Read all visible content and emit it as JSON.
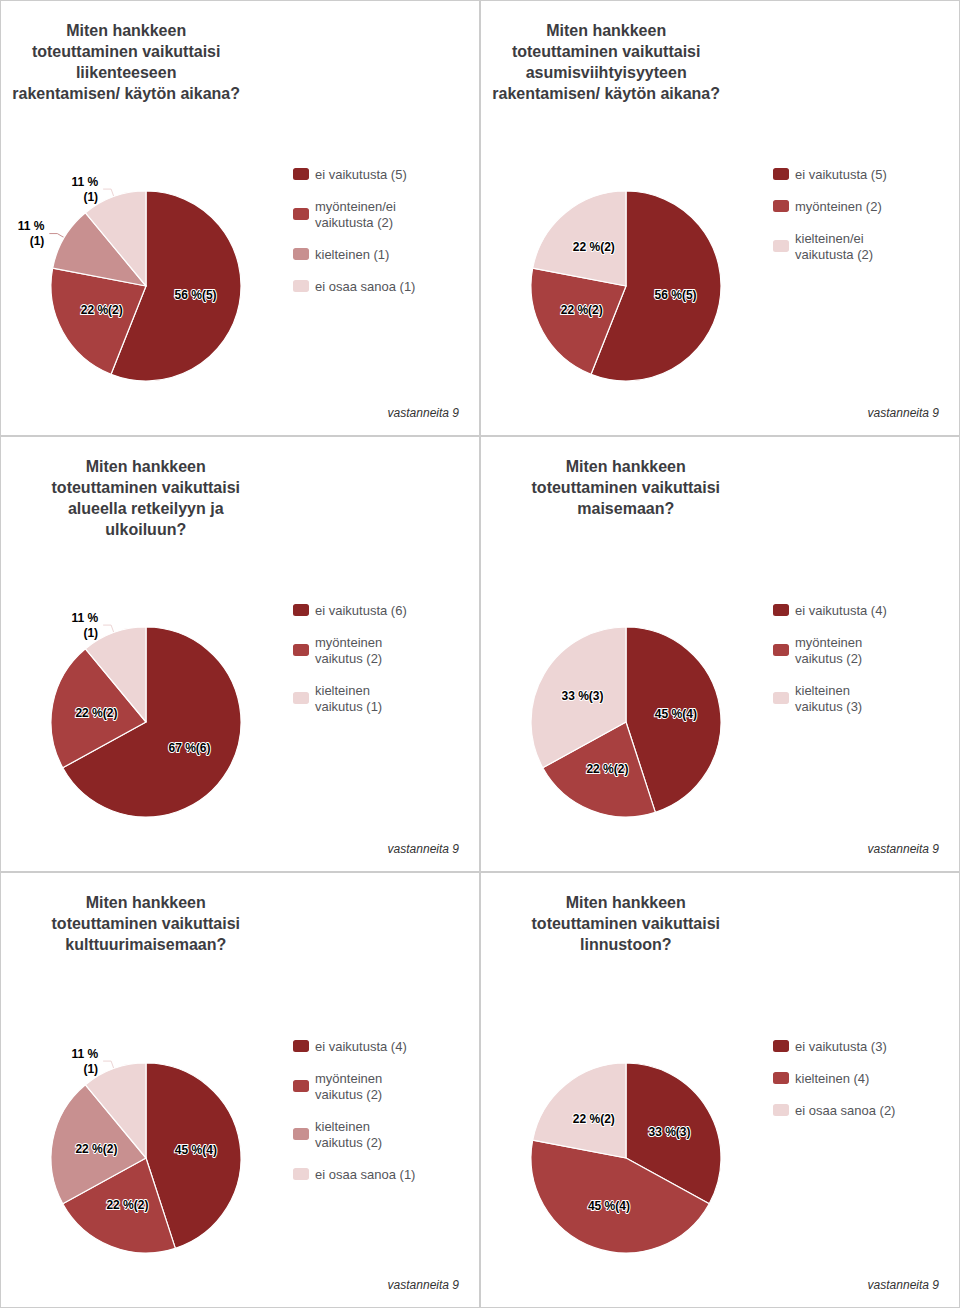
{
  "chart_data": [
    {
      "type": "pie",
      "title": "Miten hankkeen\ntoteuttaminen vaikuttaisi\nliikenteeseen\nrakentamisen/ käytön aikana?",
      "categories": [
        "ei vaikutusta (5)",
        "myönteinen/ei\nvaikutusta (2)",
        "kielteinen (1)",
        "ei osaa sanoa (1)"
      ],
      "values": [
        56,
        22,
        11,
        11
      ],
      "value_labels": [
        "56 %(5)",
        "22 %(2)",
        "11 %\n(1)",
        "11 %\n(1)"
      ],
      "colors": [
        "#8B2525",
        "#A84040",
        "#C89090",
        "#EDD5D5"
      ],
      "annotation": "vastanneita 9",
      "legend": "right"
    },
    {
      "type": "pie",
      "title": "Miten hankkeen\ntoteuttaminen vaikuttaisi\nasumisviihtyisyyteen\nrakentamisen/ käytön aikana?",
      "categories": [
        "ei vaikutusta (5)",
        "myönteinen (2)",
        "kielteinen/ei\nvaikutusta (2)"
      ],
      "values": [
        56,
        22,
        22
      ],
      "value_labels": [
        "56 %(5)",
        "22 %(2)",
        "22 %(2)"
      ],
      "colors": [
        "#8B2525",
        "#A84040",
        "#EDD5D5"
      ],
      "annotation": "vastanneita 9",
      "legend": "right"
    },
    {
      "type": "pie",
      "title": "Miten hankkeen\ntoteuttaminen vaikuttaisi\nalueella retkeilyyn ja\nulkoiluun?",
      "categories": [
        "ei vaikutusta (6)",
        "myönteinen\nvaikutus (2)",
        "kielteinen\nvaikutus (1)"
      ],
      "values": [
        67,
        22,
        11
      ],
      "value_labels": [
        "67 %(6)",
        "22 %(2)",
        "11 %\n(1)"
      ],
      "colors": [
        "#8B2525",
        "#A84040",
        "#EDD5D5"
      ],
      "annotation": "vastanneita 9",
      "legend": "right"
    },
    {
      "type": "pie",
      "title": "Miten hankkeen\ntoteuttaminen vaikuttaisi\nmaisemaan?",
      "categories": [
        "ei vaikutusta (4)",
        "myönteinen\nvaikutus (2)",
        "kielteinen\nvaikutus (3)"
      ],
      "values": [
        45,
        22,
        33
      ],
      "value_labels": [
        "45 %(4)",
        "22 %(2)",
        "33 %(3)"
      ],
      "colors": [
        "#8B2525",
        "#A84040",
        "#EDD5D5"
      ],
      "annotation": "vastanneita 9",
      "legend": "right"
    },
    {
      "type": "pie",
      "title": "Miten hankkeen\ntoteuttaminen vaikuttaisi\nkulttuurimaisemaan?",
      "categories": [
        "ei vaikutusta (4)",
        "myönteinen\nvaikutus (2)",
        "kielteinen\nvaikutus (2)",
        "ei osaa sanoa (1)"
      ],
      "values": [
        45,
        22,
        22,
        11
      ],
      "value_labels": [
        "45 %(4)",
        "22 %(2)",
        "22 %(2)",
        "11 %\n(1)"
      ],
      "colors": [
        "#8B2525",
        "#A84040",
        "#C89090",
        "#EDD5D5"
      ],
      "annotation": "vastanneita 9",
      "legend": "right"
    },
    {
      "type": "pie",
      "title": "Miten hankkeen\ntoteuttaminen vaikuttaisi\nlinnustoon?",
      "categories": [
        "ei vaikutusta (3)",
        "kielteinen (4)",
        "ei osaa sanoa (2)"
      ],
      "values": [
        33,
        45,
        22
      ],
      "value_labels": [
        "33 %(3)",
        "45 %(4)",
        "22 %(2)"
      ],
      "colors": [
        "#8B2525",
        "#A84040",
        "#EDD5D5"
      ],
      "annotation": "vastanneita 9",
      "legend": "right"
    }
  ]
}
